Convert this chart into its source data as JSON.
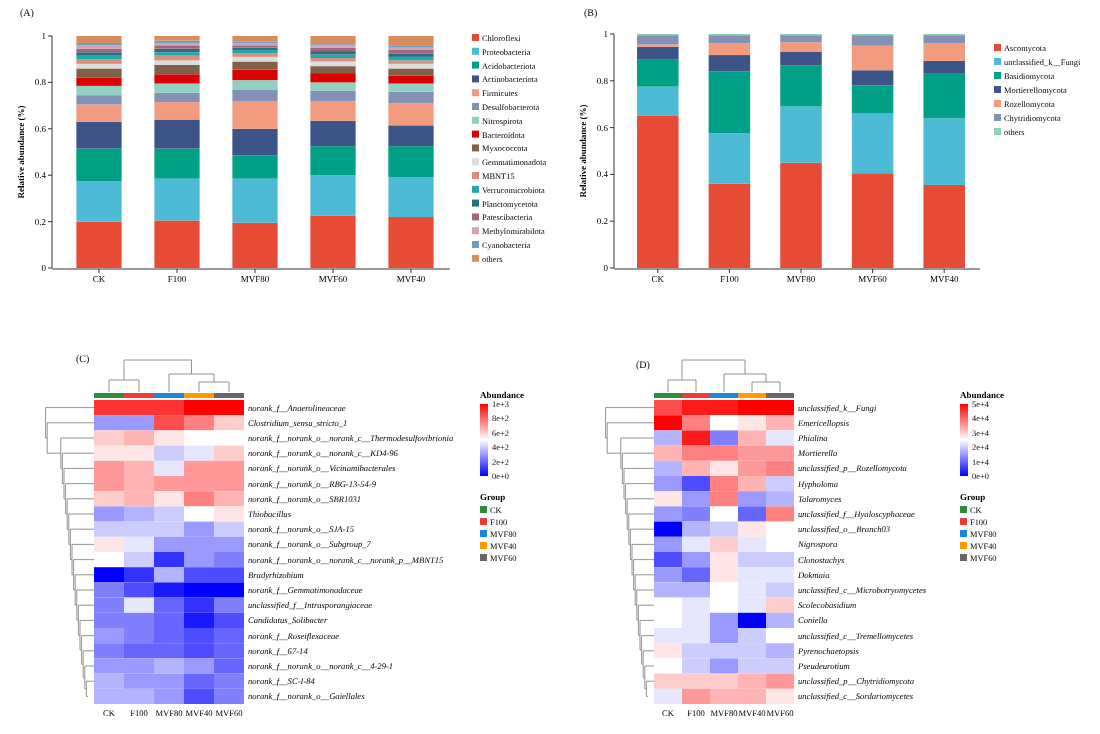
{
  "chart_data": [
    {
      "type": "bar",
      "title": "(A)",
      "ylabel": "Relative abundance (%)",
      "stacked": true,
      "legend": "right",
      "categories": [
        "CK",
        "F100",
        "MVF80",
        "MVF60",
        "MVF40"
      ],
      "ylim": [
        0,
        1
      ],
      "yticks": [
        0,
        0.2,
        0.4,
        0.6,
        0.8,
        1
      ],
      "series": [
        {
          "name": "Chloroflexi",
          "color": "#e64b35",
          "values": [
            0.2,
            0.205,
            0.195,
            0.225,
            0.22
          ]
        },
        {
          "name": "Proteobacteria",
          "color": "#4dbbd5",
          "values": [
            0.175,
            0.18,
            0.19,
            0.175,
            0.17
          ]
        },
        {
          "name": "Acidobacteriota",
          "color": "#00a087",
          "values": [
            0.14,
            0.13,
            0.1,
            0.125,
            0.135
          ]
        },
        {
          "name": "Actinobacteriota",
          "color": "#3c5488",
          "values": [
            0.115,
            0.125,
            0.115,
            0.11,
            0.09
          ]
        },
        {
          "name": "Firmicutes",
          "color": "#f39b7f",
          "values": [
            0.075,
            0.075,
            0.12,
            0.085,
            0.095
          ]
        },
        {
          "name": "Desulfobacterota",
          "color": "#8491b4",
          "values": [
            0.04,
            0.04,
            0.05,
            0.045,
            0.05
          ]
        },
        {
          "name": "Nitrospirota",
          "color": "#91d1c2",
          "values": [
            0.04,
            0.04,
            0.04,
            0.035,
            0.035
          ]
        },
        {
          "name": "Bacteroidota",
          "color": "#dc0000",
          "values": [
            0.035,
            0.04,
            0.045,
            0.04,
            0.035
          ]
        },
        {
          "name": "Myxococcota",
          "color": "#7e6148",
          "values": [
            0.04,
            0.04,
            0.035,
            0.03,
            0.03
          ]
        },
        {
          "name": "Gemmatimonadota",
          "color": "#dcdcdc",
          "values": [
            0.02,
            0.02,
            0.02,
            0.02,
            0.02
          ]
        },
        {
          "name": "MBNT15",
          "color": "#d98f80",
          "values": [
            0.02,
            0.02,
            0.015,
            0.015,
            0.015
          ]
        },
        {
          "name": "Verrucomicrobiota",
          "color": "#20a9a8",
          "values": [
            0.015,
            0.015,
            0.015,
            0.015,
            0.015
          ]
        },
        {
          "name": "Planctomycetota",
          "color": "#2c6e7e",
          "values": [
            0.015,
            0.015,
            0.01,
            0.015,
            0.015
          ]
        },
        {
          "name": "Patescibacteria",
          "color": "#a26680",
          "values": [
            0.015,
            0.015,
            0.01,
            0.015,
            0.015
          ]
        },
        {
          "name": "Methylomirabilota",
          "color": "#d4a4b0",
          "values": [
            0.015,
            0.01,
            0.01,
            0.01,
            0.01
          ]
        },
        {
          "name": "Cyanobacteria",
          "color": "#6d9ec0",
          "values": [
            0.01,
            0.01,
            0.005,
            0.005,
            0.01
          ]
        },
        {
          "name": "others",
          "color": "#d98d5c",
          "values": [
            0.03,
            0.02,
            0.025,
            0.035,
            0.04
          ]
        }
      ]
    },
    {
      "type": "bar",
      "title": "(B)",
      "ylabel": "Relative abundance (%)",
      "stacked": true,
      "legend": "right",
      "categories": [
        "CK",
        "F100",
        "MVF80",
        "MVF60",
        "MVF40"
      ],
      "ylim": [
        0,
        1
      ],
      "yticks": [
        0,
        0.2,
        0.4,
        0.6,
        0.8,
        1
      ],
      "series": [
        {
          "name": "Ascomycota",
          "color": "#e64b35",
          "values": [
            0.65,
            0.36,
            0.45,
            0.405,
            0.355
          ]
        },
        {
          "name": "unclassified_k__Fungi",
          "color": "#4dbbd5",
          "values": [
            0.125,
            0.215,
            0.24,
            0.255,
            0.285
          ]
        },
        {
          "name": "Basidiomycota",
          "color": "#00a087",
          "values": [
            0.115,
            0.265,
            0.175,
            0.12,
            0.19
          ]
        },
        {
          "name": "Mortierellomycota",
          "color": "#3c5488",
          "values": [
            0.055,
            0.07,
            0.06,
            0.065,
            0.055
          ]
        },
        {
          "name": "Rozellomycota",
          "color": "#f39b7f",
          "values": [
            0.01,
            0.05,
            0.04,
            0.105,
            0.075
          ]
        },
        {
          "name": "Chytridiomycota",
          "color": "#8491b4",
          "values": [
            0.04,
            0.035,
            0.03,
            0.045,
            0.035
          ]
        },
        {
          "name": "others",
          "color": "#91d1c2",
          "values": [
            0.005,
            0.005,
            0.005,
            0.005,
            0.005
          ]
        }
      ]
    },
    {
      "type": "heatmap",
      "title": "(C)",
      "clabel": "Abundance",
      "legend_title": "Group",
      "categories": [
        "CK",
        "F100",
        "MVF80",
        "MVF40",
        "MVF60"
      ],
      "colors": [
        "#2e8b3e",
        "#ee3b3b",
        "#1e88d8",
        "#ff9a00",
        "#666666"
      ],
      "y_categories": [
        "norank_f__Anaerolineaceae",
        "Clostridium_sensu_stricto_1",
        "norank_f__norank_o__norank_c__Thermodesulfovibrionia",
        "norank_f__norank_o__norank_c__KD4-96",
        "norank_f__norank_o__Vicinamibacterales",
        "norank_f__norank_o__RBG-13-54-9",
        "norank_f__norank_o__SBR1031",
        "Thiobacillus",
        "norank_f__norank_o__SJA-15",
        "norank_f__norank_o__Subgroup_7",
        "norank_f__norank_o__norank_c__norank_p__MBNT15",
        "Bradyrhizobium",
        "norank_f__Gemmatimonadaceae",
        "unclassified_f__Intrasporangiaceae",
        "Candidatus_Solibacter",
        "norank_f__Roseiflexaceae",
        "norank_f__67-14",
        "norank_f__norank_o__norank_c__4-29-1",
        "norank_f__SC-I-84",
        "norank_f__norank_o__Gaiellales"
      ],
      "clim": [
        0,
        1000
      ],
      "cticks": [
        {
          "value": 0,
          "label": "0e+0"
        },
        {
          "value": 200,
          "label": "2e+2"
        },
        {
          "value": 400,
          "label": "4e+2"
        },
        {
          "value": 600,
          "label": "6e+2"
        },
        {
          "value": 800,
          "label": "8e+2"
        },
        {
          "value": 1000,
          "label": "1e+3"
        }
      ],
      "cells": [
        [
          900,
          900,
          900,
          1000,
          1000
        ],
        [
          300,
          300,
          850,
          750,
          600
        ],
        [
          600,
          650,
          550,
          500,
          500
        ],
        [
          550,
          550,
          400,
          450,
          600
        ],
        [
          700,
          650,
          450,
          700,
          700
        ],
        [
          700,
          650,
          700,
          700,
          700
        ],
        [
          600,
          650,
          550,
          750,
          650
        ],
        [
          300,
          350,
          400,
          500,
          550
        ],
        [
          400,
          400,
          400,
          300,
          400
        ],
        [
          550,
          450,
          300,
          300,
          300
        ],
        [
          500,
          400,
          100,
          300,
          250
        ],
        [
          0,
          100,
          350,
          150,
          150
        ],
        [
          250,
          150,
          50,
          0,
          0
        ],
        [
          250,
          450,
          200,
          100,
          250
        ],
        [
          250,
          250,
          200,
          50,
          150
        ],
        [
          300,
          250,
          200,
          150,
          200
        ],
        [
          250,
          200,
          200,
          150,
          200
        ],
        [
          300,
          300,
          350,
          300,
          200
        ],
        [
          350,
          300,
          300,
          200,
          250
        ],
        [
          350,
          350,
          300,
          150,
          250
        ]
      ]
    },
    {
      "type": "heatmap",
      "title": "(D)",
      "clabel": "Abundance",
      "legend_title": "Group",
      "categories": [
        "CK",
        "F100",
        "MVF80",
        "MVF40",
        "MVF60"
      ],
      "colors": [
        "#2e8b3e",
        "#ee3b3b",
        "#1e88d8",
        "#ff9a00",
        "#666666"
      ],
      "y_categories": [
        "unclassified_k__Fungi",
        "Emericellopsis",
        "Phialina",
        "Mortierella",
        "unclassified_p__Rozellomycota",
        "Hypholoma",
        "Talaromyces",
        "unclassified_f__Hyaloscyphaceae",
        "unclassified_o__Branch03",
        "Nigrospora",
        "Clonostachys",
        "Dokmaia",
        "unclassified_c__Microbotryomycetes",
        "Scolecobasidium",
        "Coniella",
        "unclassified_c__Tremellomycetes",
        "Pyrenochaetopsis",
        "Pseudeurotium",
        "unclassified_p__Chytridiomycota",
        "unclassified_c__Sordariomycetes"
      ],
      "clim": [
        0,
        50000
      ],
      "cticks": [
        {
          "value": 0,
          "label": "0e+0"
        },
        {
          "value": 10000,
          "label": "1e+4"
        },
        {
          "value": 20000,
          "label": "2e+4"
        },
        {
          "value": 30000,
          "label": "3e+4"
        },
        {
          "value": 40000,
          "label": "4e+4"
        },
        {
          "value": 50000,
          "label": "5e+4"
        }
      ],
      "cells": [
        [
          42500,
          47500,
          47500,
          50000,
          50000
        ],
        [
          50000,
          37500,
          25000,
          27500,
          32500
        ],
        [
          17500,
          47500,
          12500,
          32500,
          22500
        ],
        [
          32500,
          37500,
          37500,
          35000,
          35000
        ],
        [
          17500,
          32500,
          27500,
          35000,
          37500
        ],
        [
          15000,
          7500,
          37500,
          32500,
          20000
        ],
        [
          27500,
          15000,
          37500,
          15000,
          17500
        ],
        [
          15000,
          12500,
          25000,
          10000,
          37500
        ],
        [
          0,
          17500,
          20000,
          27500,
          25000
        ],
        [
          15000,
          22500,
          30000,
          22500,
          25000
        ],
        [
          7500,
          15000,
          27500,
          20000,
          20000
        ],
        [
          15000,
          10000,
          27500,
          22500,
          22500
        ],
        [
          17500,
          17500,
          25000,
          22500,
          20000
        ],
        [
          25000,
          22500,
          25000,
          22500,
          30000
        ],
        [
          25000,
          22500,
          15000,
          0,
          17500
        ],
        [
          22500,
          22500,
          15000,
          20000,
          25000
        ],
        [
          27500,
          20000,
          20000,
          20000,
          17500
        ],
        [
          25000,
          20000,
          15000,
          20000,
          20000
        ],
        [
          30000,
          30000,
          30000,
          32500,
          35000
        ],
        [
          22500,
          35000,
          32500,
          32500,
          27500
        ]
      ]
    }
  ]
}
